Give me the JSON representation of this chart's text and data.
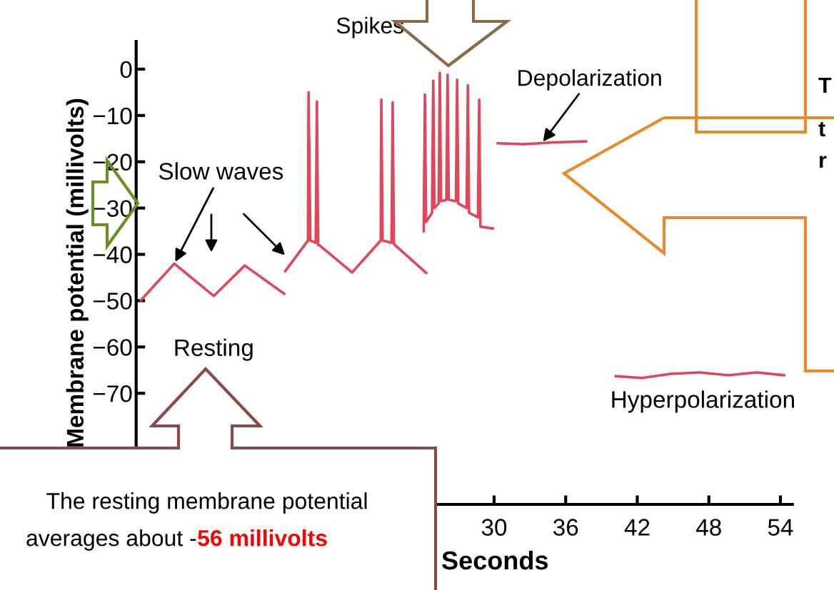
{
  "chart_data": {
    "type": "line",
    "xlabel": "Seconds",
    "ylabel": "Membrane potential (millivolts)",
    "xlim": [
      0,
      55
    ],
    "ylim": [
      -94,
      6
    ],
    "xticks": [
      30,
      36,
      42,
      48,
      54
    ],
    "yticks": [
      {
        "value": 0,
        "label": "0"
      },
      {
        "value": -10,
        "label": "−10"
      },
      {
        "value": -20,
        "label": "−20"
      },
      {
        "value": -30,
        "label": "−30"
      },
      {
        "value": -40,
        "label": "−40"
      },
      {
        "value": -50,
        "label": "−50"
      },
      {
        "value": -60,
        "label": "−60"
      },
      {
        "value": -70,
        "label": "−70"
      }
    ],
    "grid": false,
    "legend": false,
    "marker": "none",
    "line_style": "solid",
    "series": [
      {
        "color": "#e0475a",
        "x": [
          0.4,
          3.2,
          6.5,
          9.1,
          12.4
        ],
        "values": [
          -49.9,
          -42,
          -49,
          -42.4,
          -48.5
        ]
      },
      {
        "color": "#e0475a",
        "x": [
          12.5,
          14.4,
          14.45,
          14.6,
          15.05,
          15.15,
          15.25,
          15.35,
          18.1,
          20.5,
          20.55,
          20.65,
          21.4,
          21.5,
          21.6,
          21.7,
          24.3
        ],
        "values": [
          -43.6,
          -37,
          -5,
          -37,
          -37.5,
          -7,
          -38,
          -38,
          -43.9,
          -37,
          -6.6,
          -37,
          -37.5,
          -7.2,
          -37.8,
          -38,
          -44
        ]
      },
      {
        "color": "#e0475a",
        "x": [
          24.1,
          24.2,
          24.3,
          24.8,
          24.9,
          25.0,
          25.35,
          25.45,
          25.55,
          26.0,
          26.1,
          26.2,
          26.8,
          26.9,
          27.0,
          27.7,
          27.8,
          27.9,
          28.65,
          28.75,
          28.85,
          29.9
        ],
        "values": [
          -35,
          -5.5,
          -33,
          -31,
          -2.5,
          -30,
          -29,
          -0.8,
          -28.5,
          -28.2,
          -1.2,
          -28.2,
          -28.5,
          -2.3,
          -29,
          -30,
          -3.5,
          -31,
          -32,
          -6.6,
          -34,
          -34.4
        ]
      },
      {
        "color": "#e0475a",
        "x": [
          30.3,
          32.5,
          35,
          37.7
        ],
        "values": [
          -16,
          -16.2,
          -15.8,
          -15.6
        ]
      },
      {
        "color": "#e0475a",
        "x": [
          40.2,
          42.4,
          44.8,
          47.2,
          49.6,
          52.0,
          54.3
        ],
        "values": [
          -66.3,
          -66.7,
          -65.8,
          -65.5,
          -66.1,
          -65.5,
          -66.1
        ]
      }
    ],
    "annotations": [
      {
        "text": "Slow waves",
        "x": 3.2,
        "y": -42
      },
      "Spikes",
      {
        "text": "Depolarization",
        "x": 34,
        "y": -16
      },
      "Resting",
      "Hyperpolarization",
      "The resting membrane potential",
      "averages about -",
      "56 millivolts",
      "T",
      "t",
      "r"
    ]
  }
}
